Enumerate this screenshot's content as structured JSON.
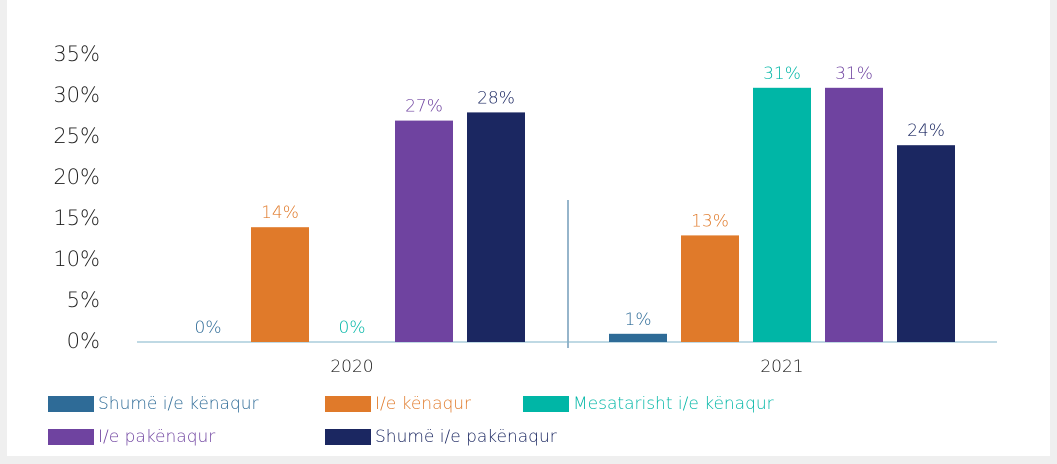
{
  "chart_data": {
    "type": "bar",
    "categories": [
      "2020",
      "2021"
    ],
    "series": [
      {
        "name": "Shumë i/e kënaqur",
        "color": "#2e6b97",
        "values": [
          0,
          1
        ],
        "value_labels": [
          "0%",
          "1%"
        ]
      },
      {
        "name": "I/e kënaqur",
        "color": "#e07a2a",
        "values": [
          14,
          13
        ],
        "value_labels": [
          "14%",
          "13%"
        ]
      },
      {
        "name": "Mesatarisht i/e kënaqur",
        "color": "#00b6a6",
        "values": [
          0,
          31
        ],
        "value_labels": [
          "0%",
          "31%"
        ]
      },
      {
        "name": "I/e pakënaqur",
        "color": "#6f43a0",
        "values": [
          27,
          31
        ],
        "value_labels": [
          "27%",
          "31%"
        ]
      },
      {
        "name": "Shumë i/e pakënaqur",
        "color": "#1b2761",
        "values": [
          28,
          24
        ],
        "value_labels": [
          "28%",
          "24%"
        ]
      }
    ],
    "ylim": [
      0,
      35
    ],
    "yticks": [
      {
        "value": 0,
        "label": "0%"
      },
      {
        "value": 5,
        "label": "5%"
      },
      {
        "value": 10,
        "label": "10%"
      },
      {
        "value": 15,
        "label": "15%"
      },
      {
        "value": 20,
        "label": "20%"
      },
      {
        "value": 25,
        "label": "25%"
      },
      {
        "value": 30,
        "label": "30%"
      },
      {
        "value": 35,
        "label": "35%"
      }
    ],
    "grid": false,
    "legend": "bottom"
  }
}
